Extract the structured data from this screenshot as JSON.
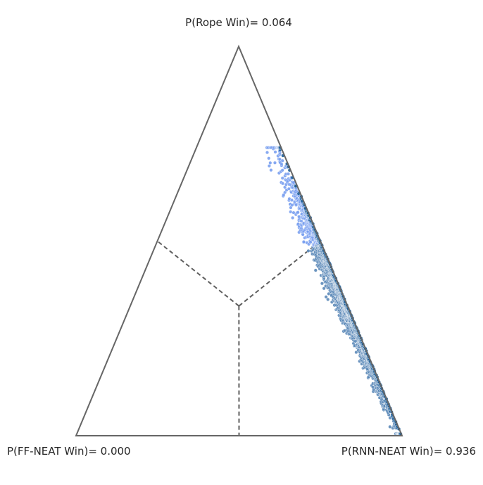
{
  "chart_data": {
    "type": "scatter",
    "plot_kind": "ternary posterior scatter",
    "vertex_labels": {
      "top": "P(Rope Win)= 0.064",
      "left": "P(FF-NEAT Win)= 0.000",
      "right": "P(RNN-NEAT Win)= 0.936"
    },
    "axes": {
      "top_component": "Rope",
      "left_component": "FF-NEAT",
      "right_component": "RNN-NEAT",
      "range": [
        0,
        1
      ]
    },
    "region_divider": "dashed lines from centroid to edge midpoints",
    "grid": false,
    "legend": "none",
    "colors": {
      "frame": "#666666",
      "divider": "#5f5f5f",
      "rope_region_points": "#7aa0f0",
      "rnn_region_points": "#5b88b8",
      "dense_core": "#1f5f9a"
    },
    "posterior_cloud": {
      "samples": 1800,
      "left_component_range": [
        0.0,
        0.06
      ],
      "top_component_range": [
        0.0,
        0.74
      ],
      "top_component_mean": 0.36,
      "right_component_range": [
        0.26,
        1.0
      ]
    }
  }
}
